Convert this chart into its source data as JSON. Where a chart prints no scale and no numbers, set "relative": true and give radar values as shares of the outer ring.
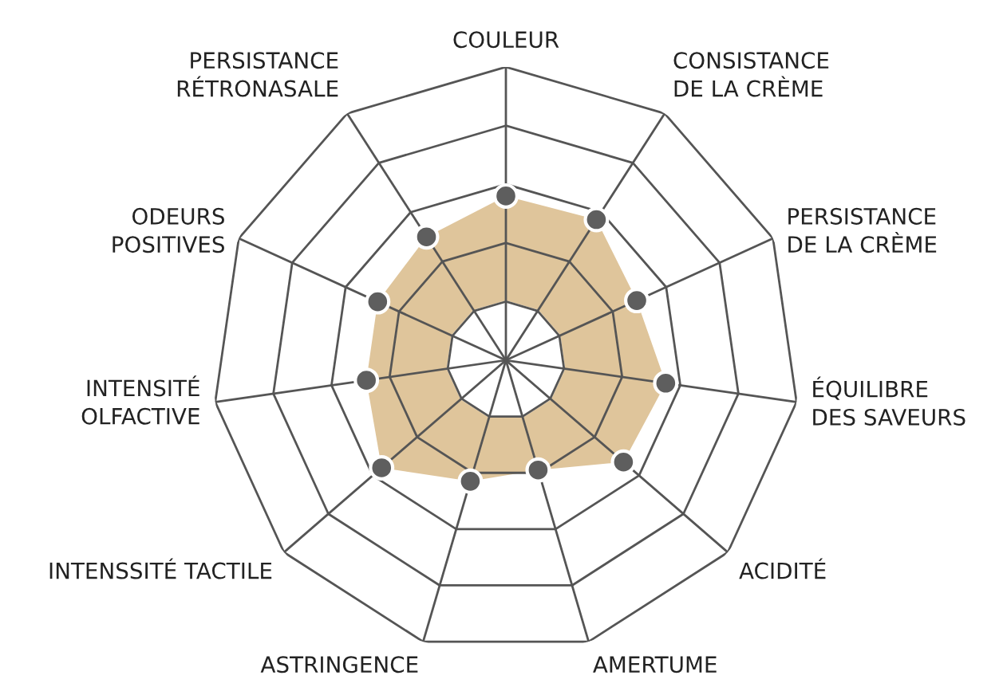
{
  "chart_data": {
    "type": "radar",
    "relative": true,
    "grid": true,
    "marker": "circle",
    "categories": [
      "COULEUR",
      "CONSISTANCE\nDE LA CRÈME",
      "PERSISTANCE\nDE LA CRÈME",
      "ÉQUILIBRE\nDES SAVEURS",
      "ACIDITÉ",
      "AMERTUME",
      "ASTRINGENCE",
      "INTENSSITÉ TACTILE",
      "INTENSITÉ\nOLFACTIVE",
      "ODEURS\nPOSITIVES",
      "PERSISTANCE\nRÉTRONASALE"
    ],
    "series": [
      {
        "color": "#dfc59b",
        "values": [
          0.56,
          0.57,
          0.49,
          0.55,
          0.53,
          0.39,
          0.43,
          0.56,
          0.48,
          0.48,
          0.5
        ]
      }
    ]
  }
}
